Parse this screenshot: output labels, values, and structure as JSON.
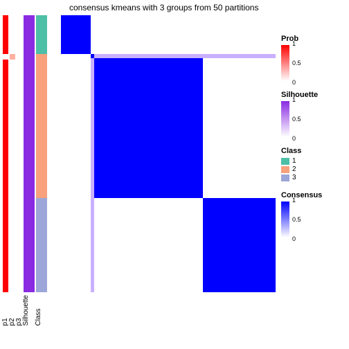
{
  "title": "consensus kmeans with 3 groups from 50 partitions",
  "colors": {
    "prob_high": "#ff0000",
    "prob_mid": "#ffb0a0",
    "prob_low": "#ffffff",
    "silhouette_high": "#8a2be2",
    "silhouette_mid": "#c9a0ff",
    "silhouette_low": "#ffffff",
    "class1": "#4dbfa6",
    "class2": "#f8a17c",
    "class3": "#9ca6d8",
    "consensus_high": "#0000ff",
    "consensus_mid": "#b0a0ff",
    "consensus_low": "#ffffff",
    "background": "#ffffff",
    "text": "#000000"
  },
  "class_fractions": {
    "c1": 0.14,
    "c2": 0.52,
    "c3": 0.34
  },
  "track_labels": [
    "p1",
    "p2",
    "p3",
    "Silhouette",
    "Class"
  ],
  "tracks": [
    {
      "width": "thin",
      "segments": [
        {
          "f": 0.14,
          "color": "#ff0000"
        },
        {
          "f": 0.02,
          "color": "#ffffff"
        },
        {
          "f": 0.5,
          "color": "#ff0000"
        },
        {
          "f": 0.34,
          "color": "#ff0000"
        }
      ]
    },
    {
      "width": "thin",
      "segments": [
        {
          "f": 0.14,
          "color": "#ffffff"
        },
        {
          "f": 0.02,
          "color": "#ffb0a0"
        },
        {
          "f": 0.5,
          "color": "#ffffff"
        },
        {
          "f": 0.34,
          "color": "#ffffff"
        }
      ]
    },
    {
      "width": "thin",
      "segments": [
        {
          "f": 0.14,
          "color": "#ffffff"
        },
        {
          "f": 0.86,
          "color": "#ffffff"
        }
      ]
    },
    {
      "width": "wide",
      "segments": [
        {
          "f": 1.0,
          "color": "#8a2be2"
        }
      ]
    },
    {
      "width": "wide",
      "segments": [
        {
          "f": 0.14,
          "color": "#4dbfa6"
        },
        {
          "f": 0.52,
          "color": "#f8a17c"
        },
        {
          "f": 0.34,
          "color": "#9ca6d8"
        }
      ]
    }
  ],
  "heatmap_blocks": [
    {
      "rowf": 0.14,
      "cells": [
        {
          "colf": 0.14,
          "color": "#0000ff"
        },
        {
          "colf": 0.52,
          "color": "#ffffff"
        },
        {
          "colf": 0.34,
          "color": "#ffffff"
        }
      ]
    },
    {
      "rowf": 0.015,
      "cells": [
        {
          "colf": 0.14,
          "color": "#ffffff"
        },
        {
          "colf": 0.015,
          "color": "#0000ff"
        },
        {
          "colf": 0.845,
          "color": "#c9b0ff"
        }
      ]
    },
    {
      "rowf": 0.505,
      "cells": [
        {
          "colf": 0.14,
          "color": "#ffffff"
        },
        {
          "colf": 0.015,
          "color": "#c9b0ff"
        },
        {
          "colf": 0.505,
          "color": "#0000ff"
        },
        {
          "colf": 0.34,
          "color": "#ffffff"
        }
      ]
    },
    {
      "rowf": 0.34,
      "cells": [
        {
          "colf": 0.14,
          "color": "#ffffff"
        },
        {
          "colf": 0.015,
          "color": "#c9b0ff"
        },
        {
          "colf": 0.505,
          "color": "#ffffff"
        },
        {
          "colf": 0.34,
          "color": "#0000ff"
        }
      ]
    }
  ],
  "legends": {
    "prob": {
      "title": "Prob",
      "ticks": [
        "1",
        "0.5",
        "0"
      ],
      "from": "#ff0000",
      "to": "#ffffff"
    },
    "silhouette": {
      "title": "Silhouette",
      "ticks": [
        "1",
        "0.5",
        "0"
      ],
      "from": "#8a2be2",
      "to": "#ffffff"
    },
    "class": {
      "title": "Class",
      "items": [
        {
          "label": "1",
          "color": "#4dbfa6"
        },
        {
          "label": "2",
          "color": "#f8a17c"
        },
        {
          "label": "3",
          "color": "#9ca6d8"
        }
      ]
    },
    "consensus": {
      "title": "Consensus",
      "ticks": [
        "1",
        "0.5",
        "0"
      ],
      "from": "#0000ff",
      "to": "#ffffff"
    }
  }
}
